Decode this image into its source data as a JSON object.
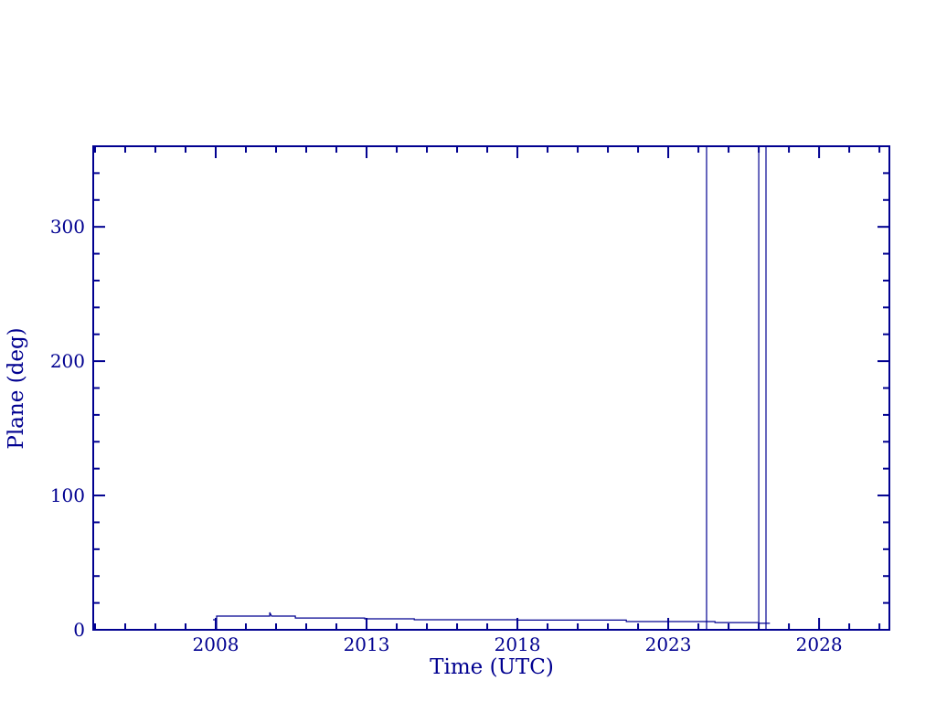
{
  "window": {
    "background_color": "#ffffff"
  },
  "chart_data": {
    "type": "line",
    "title": "",
    "xlabel": "Time (UTC)",
    "ylabel": "Plane (deg)",
    "xlim": [
      2003.94,
      2030.33
    ],
    "ylim": [
      0,
      360
    ],
    "x_major_ticks": [
      2008,
      2013,
      2018,
      2023,
      2028
    ],
    "x_tick_labels": [
      "2008",
      "2013",
      "2018",
      "2023",
      "2028"
    ],
    "x_minor_tick_step": 1,
    "y_major_ticks": [
      0,
      100,
      200,
      300
    ],
    "y_tick_labels": [
      "0",
      "100",
      "200",
      "300"
    ],
    "y_minor_tick_step": 20,
    "grid": false,
    "legend": false,
    "frame_color": "#000090",
    "line_color": "#000090",
    "series": [
      {
        "name": "plane-angle",
        "points": [
          [
            2007.91,
            7.5
          ],
          [
            2008.03,
            7.5
          ],
          [
            2008.03,
            0.7
          ],
          [
            2008.03,
            10.2
          ],
          [
            2009.79,
            10.2
          ],
          [
            2009.79,
            12.9
          ],
          [
            2009.85,
            10.2
          ],
          [
            2010.64,
            10.2
          ],
          [
            2010.64,
            8.8
          ],
          [
            2012.94,
            8.8
          ],
          [
            2012.94,
            8.2
          ],
          [
            2014.58,
            8.2
          ],
          [
            2014.58,
            7.5
          ],
          [
            2018.0,
            7.5
          ],
          [
            2018.0,
            7.2
          ],
          [
            2021.61,
            7.2
          ],
          [
            2021.61,
            6.1
          ],
          [
            2024.55,
            6.1
          ],
          [
            2024.55,
            5.4
          ],
          [
            2026.0,
            5.4
          ],
          [
            2026.0,
            4.8
          ],
          [
            2026.37,
            4.8
          ]
        ]
      }
    ],
    "vertical_spikes": [
      {
        "x": 2024.27,
        "y_from": 0,
        "y_to": 360
      },
      {
        "x": 2026.0,
        "y_from": 0,
        "y_to": 360
      },
      {
        "x": 2026.24,
        "y_from": 0,
        "y_to": 360
      }
    ]
  }
}
